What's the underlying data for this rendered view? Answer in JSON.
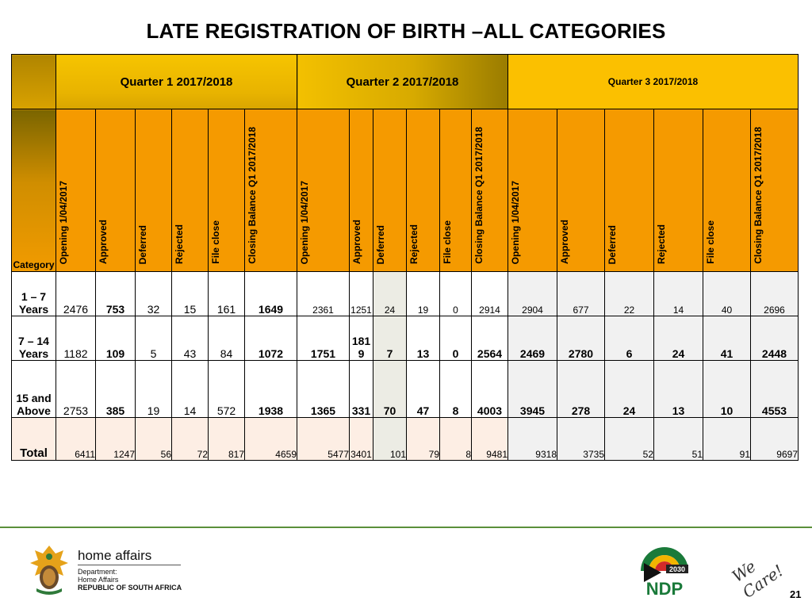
{
  "title": "LATE REGISTRATION OF BIRTH –ALL CATEGORIES",
  "quarters": [
    "Quarter 1 2017/2018",
    "Quarter 2 2017/2018",
    "Quarter 3 2017/2018"
  ],
  "category_header": "Category",
  "columns": [
    "Opening 1/04/2017",
    "Approved",
    "Deferred",
    "Rejected",
    "File close",
    "Closing Balance Q1 2017/2018"
  ],
  "rows": [
    {
      "label": "1 – 7 Years",
      "cells": [
        "2476",
        "753",
        "32",
        "15",
        "161",
        "1649",
        "2361",
        "1251",
        "24",
        "19",
        "0",
        "2914",
        "2904",
        "677",
        "22",
        "14",
        "40",
        "2696"
      ]
    },
    {
      "label": "7 – 14 Years",
      "cells": [
        "1182",
        "109",
        "5",
        "43",
        "84",
        "1072",
        "1751",
        "1819",
        "7",
        "13",
        "0",
        "2564",
        "2469",
        "2780",
        "6",
        "24",
        "41",
        "2448"
      ]
    },
    {
      "label": "15 and Above",
      "cells": [
        "2753",
        "385",
        "19",
        "14",
        "572",
        "1938",
        "1365",
        "331",
        "70",
        "47",
        "8",
        "4003",
        "3945",
        "278",
        "24",
        "13",
        "10",
        "4553"
      ]
    }
  ],
  "total": {
    "label": "Total",
    "cells": [
      "6411",
      "1247",
      "56",
      "72",
      "817",
      "4659",
      "5477",
      "3401",
      "101",
      "79",
      "8",
      "9481",
      "9318",
      "3735",
      "52",
      "51",
      "91",
      "9697"
    ]
  },
  "footer": {
    "org_name": "home affairs",
    "dept_line1": "Department:",
    "dept_line2": "Home Affairs",
    "dept_line3": "REPUBLIC OF SOUTH AFRICA",
    "ndp_year": "2030",
    "ndp_text": "NDP",
    "slogan": "We Care!",
    "page_number": "21"
  },
  "colors": {
    "accent_orange": "#f59a00",
    "quarter_gold": "#fbc000",
    "footer_green": "#5a8f3a"
  }
}
